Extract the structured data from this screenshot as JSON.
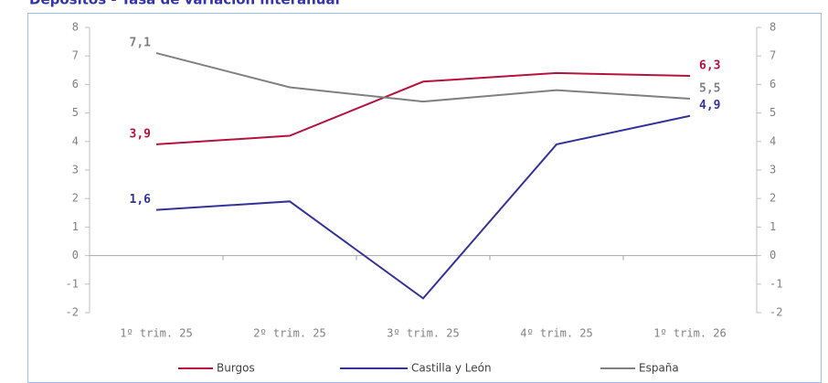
{
  "chart_data": {
    "type": "line",
    "title": "Depósitos - Tasa de variación interanual",
    "categories": [
      "1º trim. 25",
      "2º trim. 25",
      "3º trim. 25",
      "4º trim. 25",
      "1º trim. 26"
    ],
    "series": [
      {
        "name": "Burgos",
        "color": "#b5123e",
        "values": [
          3.9,
          4.2,
          6.1,
          6.4,
          6.3
        ],
        "value_labels": [
          "3,9",
          null,
          null,
          null,
          "6,3"
        ]
      },
      {
        "name": "Castilla y León",
        "color": "#33339a",
        "values": [
          1.6,
          1.9,
          -1.5,
          3.9,
          4.9
        ],
        "value_labels": [
          "1,6",
          null,
          null,
          null,
          "4,9"
        ]
      },
      {
        "name": "España",
        "color": "#808080",
        "values": [
          7.1,
          5.9,
          5.4,
          5.8,
          5.5
        ],
        "value_labels": [
          "7,1",
          null,
          null,
          null,
          "5,5"
        ]
      }
    ],
    "ylim": [
      -2,
      8
    ],
    "yticks": [
      -2,
      -1,
      0,
      1,
      2,
      3,
      4,
      5,
      6,
      7,
      8
    ],
    "y2lim": [
      -2,
      8
    ],
    "y2ticks": [
      -2,
      -1,
      0,
      1,
      2,
      3,
      4,
      5,
      6,
      7,
      8
    ],
    "legend": "bottom"
  }
}
